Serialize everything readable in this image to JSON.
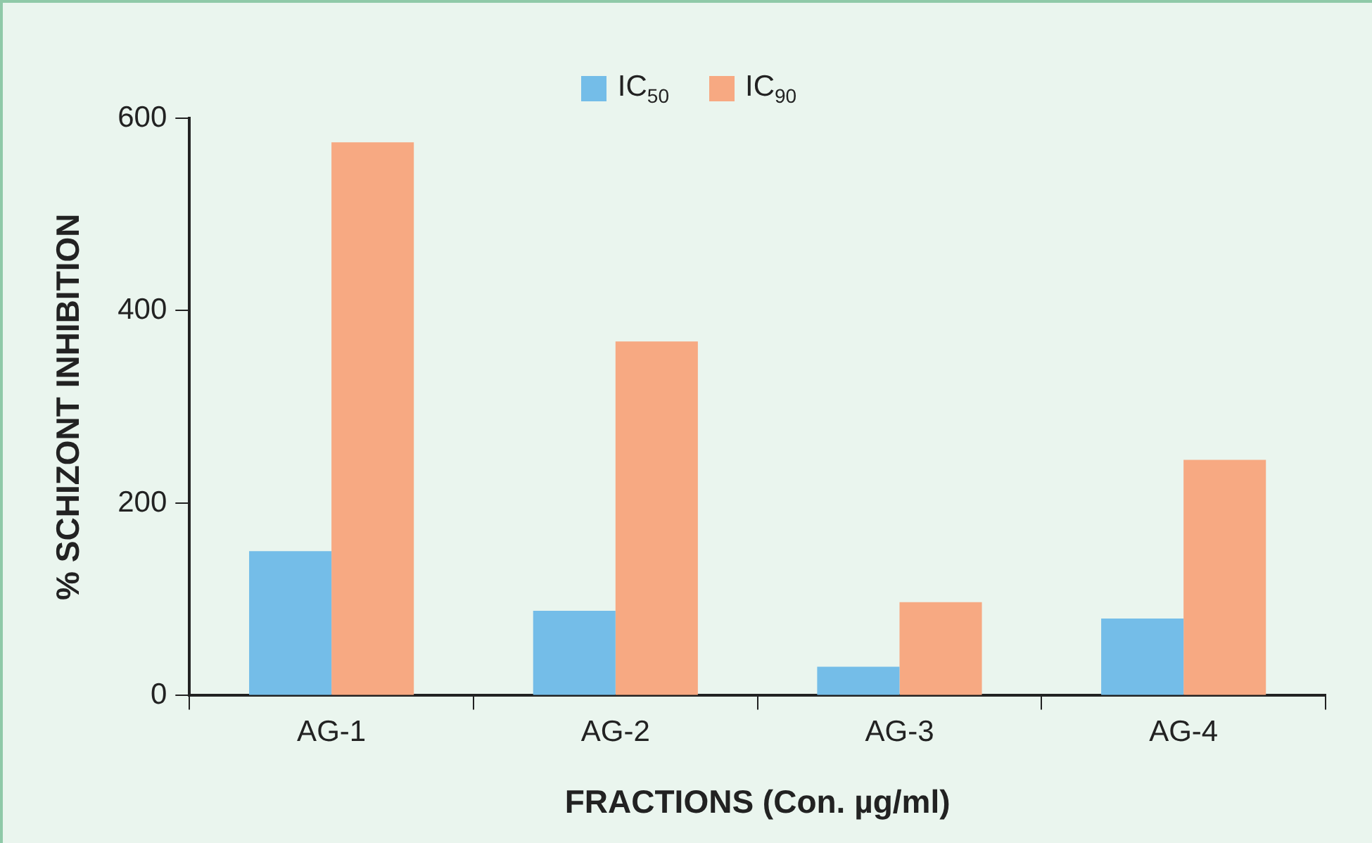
{
  "chart_data": {
    "type": "bar",
    "xlabel": "FRACTIONS (Con. µg/ml)",
    "ylabel": "% SCHIZONT INHIBITION",
    "categories": [
      "AG-1",
      "AG-2",
      "AG-3",
      "AG-4"
    ],
    "series": [
      {
        "name": "IC$_{50}$",
        "color": "#74bde8",
        "values": [
          150,
          88,
          30,
          80
        ]
      },
      {
        "name": "IC$_{90}$",
        "color": "#f7a982",
        "values": [
          575,
          368,
          97,
          245
        ]
      }
    ],
    "ylim": [
      0,
      600
    ],
    "yticks": [
      0,
      200,
      400,
      600
    ],
    "legend": "top"
  }
}
